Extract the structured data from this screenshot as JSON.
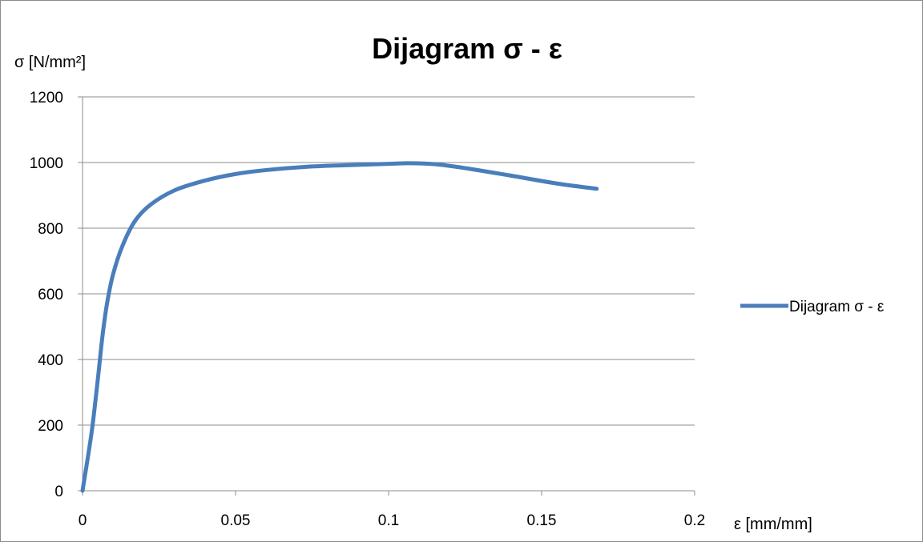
{
  "chart_data": {
    "type": "line",
    "title": "Dijagram σ - ε",
    "ylabel": "σ  [N/mm²]",
    "xlabel": "ε  [mm/mm]",
    "xlim": [
      0,
      0.2
    ],
    "ylim": [
      0,
      1200
    ],
    "xticks": [
      0,
      0.05,
      0.1,
      0.15,
      0.2
    ],
    "xtick_labels": [
      "0",
      "0.05",
      "0.1",
      "0.15",
      "0.2"
    ],
    "yticks": [
      0,
      200,
      400,
      600,
      800,
      1000,
      1200
    ],
    "ytick_labels": [
      "0",
      "200",
      "400",
      "600",
      "800",
      "1000",
      "1200"
    ],
    "grid": "horizontal",
    "legend_position": "right",
    "series": [
      {
        "name": "Dijagram σ - ε",
        "color": "#4a7ebb",
        "x": [
          0,
          0.003,
          0.005,
          0.0065,
          0.008,
          0.01,
          0.013,
          0.017,
          0.022,
          0.03,
          0.04,
          0.05,
          0.06,
          0.075,
          0.09,
          0.1,
          0.107,
          0.115,
          0.125,
          0.14,
          0.155,
          0.168
        ],
        "y": [
          0,
          180,
          340,
          470,
          570,
          660,
          745,
          820,
          870,
          915,
          945,
          965,
          977,
          988,
          993,
          996,
          998,
          995,
          983,
          960,
          936,
          920
        ]
      }
    ]
  }
}
